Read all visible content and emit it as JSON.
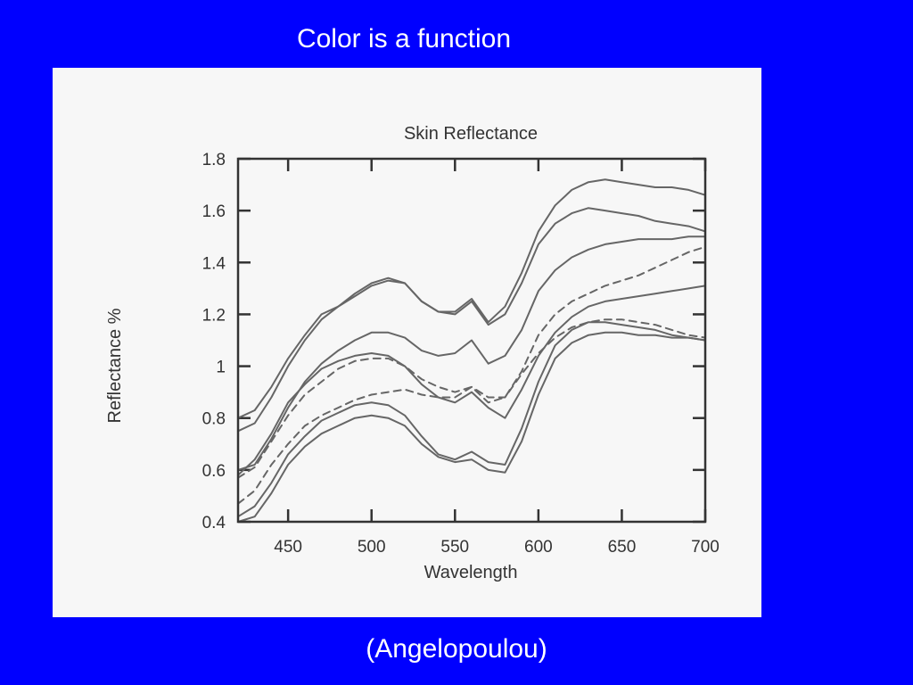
{
  "slide": {
    "title": "Color is a function",
    "caption": "(Angelopoulou)"
  },
  "chart_data": {
    "type": "line",
    "title": "Skin Reflectance",
    "xlabel": "Wavelength",
    "ylabel": "Reflectance %",
    "xlim": [
      420,
      700
    ],
    "ylim": [
      0.4,
      1.8
    ],
    "xticks": [
      450,
      500,
      550,
      600,
      650,
      700
    ],
    "yticks": [
      0.4,
      0.6,
      0.8,
      1,
      1.2,
      1.4,
      1.6,
      1.8
    ],
    "grid": false,
    "line_color": "#666666",
    "series": [
      {
        "style": "solid",
        "points": [
          [
            420,
            0.8
          ],
          [
            430,
            0.83
          ],
          [
            440,
            0.92
          ],
          [
            450,
            1.03
          ],
          [
            460,
            1.12
          ],
          [
            470,
            1.2
          ],
          [
            480,
            1.23
          ],
          [
            490,
            1.28
          ],
          [
            500,
            1.32
          ],
          [
            510,
            1.34
          ],
          [
            520,
            1.32
          ],
          [
            530,
            1.25
          ],
          [
            540,
            1.21
          ],
          [
            550,
            1.21
          ],
          [
            560,
            1.26
          ],
          [
            570,
            1.17
          ],
          [
            580,
            1.23
          ],
          [
            590,
            1.36
          ],
          [
            600,
            1.52
          ],
          [
            610,
            1.62
          ],
          [
            620,
            1.68
          ],
          [
            630,
            1.71
          ],
          [
            640,
            1.72
          ],
          [
            650,
            1.71
          ],
          [
            660,
            1.7
          ],
          [
            670,
            1.69
          ],
          [
            680,
            1.69
          ],
          [
            690,
            1.68
          ],
          [
            700,
            1.66
          ]
        ]
      },
      {
        "style": "solid",
        "points": [
          [
            420,
            0.75
          ],
          [
            430,
            0.78
          ],
          [
            440,
            0.88
          ],
          [
            450,
            1.0
          ],
          [
            460,
            1.1
          ],
          [
            470,
            1.18
          ],
          [
            480,
            1.23
          ],
          [
            490,
            1.27
          ],
          [
            500,
            1.31
          ],
          [
            510,
            1.33
          ],
          [
            520,
            1.32
          ],
          [
            530,
            1.25
          ],
          [
            540,
            1.21
          ],
          [
            550,
            1.2
          ],
          [
            560,
            1.25
          ],
          [
            570,
            1.16
          ],
          [
            580,
            1.2
          ],
          [
            590,
            1.32
          ],
          [
            600,
            1.47
          ],
          [
            610,
            1.55
          ],
          [
            620,
            1.59
          ],
          [
            630,
            1.61
          ],
          [
            640,
            1.6
          ],
          [
            650,
            1.59
          ],
          [
            660,
            1.58
          ],
          [
            670,
            1.56
          ],
          [
            680,
            1.55
          ],
          [
            690,
            1.54
          ],
          [
            700,
            1.52
          ]
        ]
      },
      {
        "style": "solid",
        "points": [
          [
            420,
            0.6
          ],
          [
            430,
            0.62
          ],
          [
            440,
            0.72
          ],
          [
            450,
            0.84
          ],
          [
            460,
            0.94
          ],
          [
            470,
            1.01
          ],
          [
            480,
            1.06
          ],
          [
            490,
            1.1
          ],
          [
            500,
            1.13
          ],
          [
            510,
            1.13
          ],
          [
            520,
            1.11
          ],
          [
            530,
            1.06
          ],
          [
            540,
            1.04
          ],
          [
            550,
            1.05
          ],
          [
            560,
            1.1
          ],
          [
            570,
            1.01
          ],
          [
            580,
            1.04
          ],
          [
            590,
            1.14
          ],
          [
            600,
            1.29
          ],
          [
            610,
            1.37
          ],
          [
            620,
            1.42
          ],
          [
            630,
            1.45
          ],
          [
            640,
            1.47
          ],
          [
            650,
            1.48
          ],
          [
            660,
            1.49
          ],
          [
            670,
            1.49
          ],
          [
            680,
            1.49
          ],
          [
            690,
            1.5
          ],
          [
            700,
            1.5
          ]
        ]
      },
      {
        "style": "dashed",
        "points": [
          [
            420,
            0.57
          ],
          [
            430,
            0.61
          ],
          [
            440,
            0.71
          ],
          [
            450,
            0.81
          ],
          [
            460,
            0.89
          ],
          [
            470,
            0.94
          ],
          [
            480,
            0.99
          ],
          [
            490,
            1.02
          ],
          [
            500,
            1.03
          ],
          [
            510,
            1.03
          ],
          [
            520,
            1.0
          ],
          [
            530,
            0.95
          ],
          [
            540,
            0.92
          ],
          [
            550,
            0.9
          ],
          [
            560,
            0.92
          ],
          [
            570,
            0.86
          ],
          [
            580,
            0.88
          ],
          [
            590,
            0.98
          ],
          [
            600,
            1.12
          ],
          [
            610,
            1.2
          ],
          [
            620,
            1.25
          ],
          [
            630,
            1.28
          ],
          [
            640,
            1.31
          ],
          [
            650,
            1.33
          ],
          [
            660,
            1.35
          ],
          [
            670,
            1.38
          ],
          [
            680,
            1.41
          ],
          [
            690,
            1.44
          ],
          [
            700,
            1.46
          ]
        ]
      },
      {
        "style": "solid",
        "points": [
          [
            420,
            0.58
          ],
          [
            430,
            0.64
          ],
          [
            440,
            0.74
          ],
          [
            450,
            0.86
          ],
          [
            460,
            0.93
          ],
          [
            470,
            0.99
          ],
          [
            480,
            1.02
          ],
          [
            490,
            1.04
          ],
          [
            500,
            1.05
          ],
          [
            510,
            1.04
          ],
          [
            520,
            1.0
          ],
          [
            530,
            0.93
          ],
          [
            540,
            0.88
          ],
          [
            550,
            0.86
          ],
          [
            560,
            0.9
          ],
          [
            570,
            0.84
          ],
          [
            580,
            0.8
          ],
          [
            590,
            0.91
          ],
          [
            600,
            1.04
          ],
          [
            610,
            1.13
          ],
          [
            620,
            1.19
          ],
          [
            630,
            1.23
          ],
          [
            640,
            1.25
          ],
          [
            650,
            1.26
          ],
          [
            660,
            1.27
          ],
          [
            670,
            1.28
          ],
          [
            680,
            1.29
          ],
          [
            690,
            1.3
          ],
          [
            700,
            1.31
          ]
        ]
      },
      {
        "style": "dashed",
        "points": [
          [
            420,
            0.47
          ],
          [
            430,
            0.52
          ],
          [
            440,
            0.62
          ],
          [
            450,
            0.7
          ],
          [
            460,
            0.77
          ],
          [
            470,
            0.81
          ],
          [
            480,
            0.84
          ],
          [
            490,
            0.87
          ],
          [
            500,
            0.89
          ],
          [
            510,
            0.9
          ],
          [
            520,
            0.91
          ],
          [
            530,
            0.89
          ],
          [
            540,
            0.88
          ],
          [
            550,
            0.88
          ],
          [
            560,
            0.92
          ],
          [
            570,
            0.88
          ],
          [
            580,
            0.88
          ],
          [
            590,
            0.97
          ],
          [
            600,
            1.05
          ],
          [
            610,
            1.11
          ],
          [
            620,
            1.15
          ],
          [
            630,
            1.17
          ],
          [
            640,
            1.18
          ],
          [
            650,
            1.18
          ],
          [
            660,
            1.17
          ],
          [
            670,
            1.16
          ],
          [
            680,
            1.14
          ],
          [
            690,
            1.12
          ],
          [
            700,
            1.11
          ]
        ]
      },
      {
        "style": "solid",
        "points": [
          [
            420,
            0.42
          ],
          [
            430,
            0.46
          ],
          [
            440,
            0.55
          ],
          [
            450,
            0.66
          ],
          [
            460,
            0.73
          ],
          [
            470,
            0.79
          ],
          [
            480,
            0.82
          ],
          [
            490,
            0.85
          ],
          [
            500,
            0.86
          ],
          [
            510,
            0.85
          ],
          [
            520,
            0.81
          ],
          [
            530,
            0.73
          ],
          [
            540,
            0.66
          ],
          [
            550,
            0.64
          ],
          [
            560,
            0.67
          ],
          [
            570,
            0.63
          ],
          [
            580,
            0.62
          ],
          [
            590,
            0.76
          ],
          [
            600,
            0.94
          ],
          [
            610,
            1.08
          ],
          [
            620,
            1.14
          ],
          [
            630,
            1.17
          ],
          [
            640,
            1.17
          ],
          [
            650,
            1.16
          ],
          [
            660,
            1.15
          ],
          [
            670,
            1.14
          ],
          [
            680,
            1.12
          ],
          [
            690,
            1.11
          ],
          [
            700,
            1.1
          ]
        ]
      },
      {
        "style": "solid",
        "points": [
          [
            420,
            0.4
          ],
          [
            430,
            0.42
          ],
          [
            440,
            0.51
          ],
          [
            450,
            0.62
          ],
          [
            460,
            0.69
          ],
          [
            470,
            0.74
          ],
          [
            480,
            0.77
          ],
          [
            490,
            0.8
          ],
          [
            500,
            0.81
          ],
          [
            510,
            0.8
          ],
          [
            520,
            0.77
          ],
          [
            530,
            0.7
          ],
          [
            540,
            0.65
          ],
          [
            550,
            0.63
          ],
          [
            560,
            0.64
          ],
          [
            570,
            0.6
          ],
          [
            580,
            0.59
          ],
          [
            590,
            0.71
          ],
          [
            600,
            0.89
          ],
          [
            610,
            1.03
          ],
          [
            620,
            1.09
          ],
          [
            630,
            1.12
          ],
          [
            640,
            1.13
          ],
          [
            650,
            1.13
          ],
          [
            660,
            1.12
          ],
          [
            670,
            1.12
          ],
          [
            680,
            1.11
          ],
          [
            690,
            1.11
          ],
          [
            700,
            1.1
          ]
        ]
      }
    ]
  }
}
